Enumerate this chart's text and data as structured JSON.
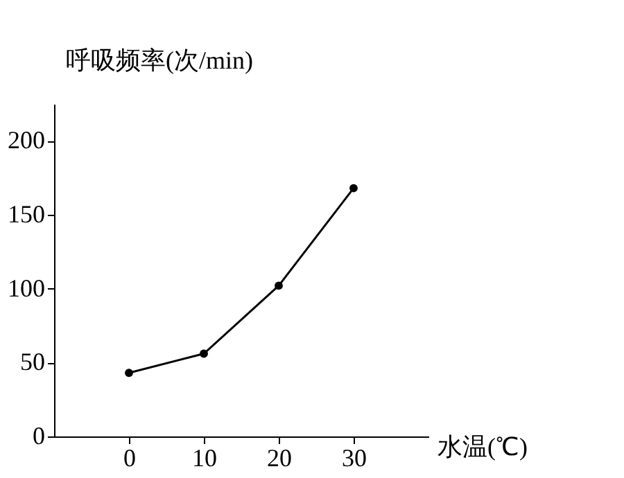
{
  "chart_data": {
    "type": "line",
    "xlabel": "水温(℃)",
    "ylabel": "呼吸频率(次/min)",
    "x": [
      0,
      10,
      20,
      30
    ],
    "series": [
      {
        "color": "#000000",
        "values": [
          43,
          56,
          102,
          168
        ]
      }
    ],
    "xlim": [
      -10,
      40
    ],
    "xticks": [
      0,
      10,
      20,
      30
    ],
    "ylim": [
      0,
      225
    ],
    "yticks": [
      0,
      50,
      100,
      150,
      200
    ],
    "grid": false,
    "marker": "circle",
    "line_style": "solid"
  }
}
